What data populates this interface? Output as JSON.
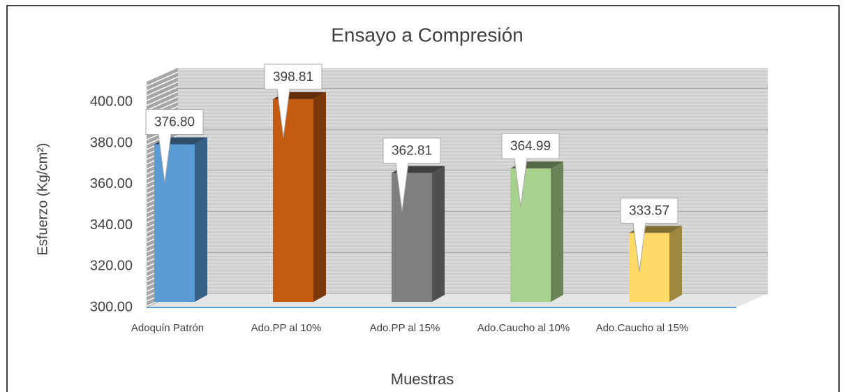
{
  "chart_data": {
    "type": "bar",
    "title": "Ensayo a Compresión",
    "x_label": "Muestras",
    "y_label": "Esfuerzo (Kg/cm²)",
    "categories": [
      "Adoquín Patrón",
      "Ado.PP al 10%",
      "Ado.PP al 15%",
      "Ado.Caucho al 10%",
      "Ado.Caucho al 15%"
    ],
    "values": [
      376.8,
      398.81,
      362.81,
      364.99,
      333.57
    ],
    "value_labels": [
      "376.80",
      "398.81",
      "362.81",
      "364.99",
      "333.57"
    ],
    "colors": [
      "#5b9bd5",
      "#c55a11",
      "#7f7f7f",
      "#a9d18e",
      "#ffd966"
    ],
    "ylim": [
      300,
      410
    ],
    "yticks": [
      {
        "value": 300,
        "label": "300.00"
      },
      {
        "value": 320,
        "label": "320.00"
      },
      {
        "value": 340,
        "label": "340.00"
      },
      {
        "value": 360,
        "label": "360.00"
      },
      {
        "value": 380,
        "label": "380.00"
      },
      {
        "value": 400,
        "label": "400.00"
      }
    ],
    "grid": true
  }
}
